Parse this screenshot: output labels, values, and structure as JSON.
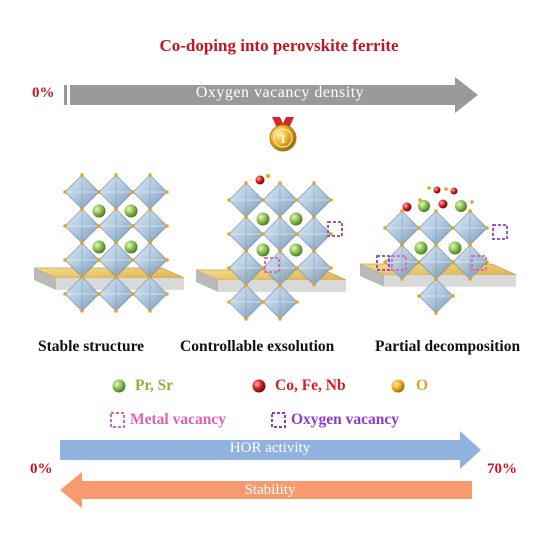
{
  "title": "Co-doping into perovskite ferrite",
  "top_arrow": {
    "label": "Oxygen vacancy density",
    "start_value": "0%",
    "color": "#9a9a9a"
  },
  "medal": {
    "text": "1",
    "icon": "gold-medal-icon"
  },
  "structures": [
    {
      "caption": "Stable structure"
    },
    {
      "caption": "Controllable exsolution"
    },
    {
      "caption": "Partial decomposition"
    }
  ],
  "legend": {
    "a_site": "Pr, Sr",
    "b_site": "Co, Fe, Nb",
    "oxygen": "O",
    "metal_vacancy": "Metal vacancy",
    "oxygen_vacancy": "Oxygen vacancy",
    "colors": {
      "a_site": "#8cc050",
      "b_site": "#d41e1e",
      "oxygen": "#f0b020",
      "metal_vacancy": "#e060b4",
      "oxygen_vacancy": "#8c3ccc",
      "octahedron": "#a9c4dc",
      "substrate": "#e9c66a"
    }
  },
  "bottom_arrows": {
    "hor_label": "HOR activity",
    "stability_label": "Stability",
    "start_value": "0%",
    "end_value": "70%",
    "hor_color": "#8fb2de",
    "stability_color": "#f79a6e"
  }
}
